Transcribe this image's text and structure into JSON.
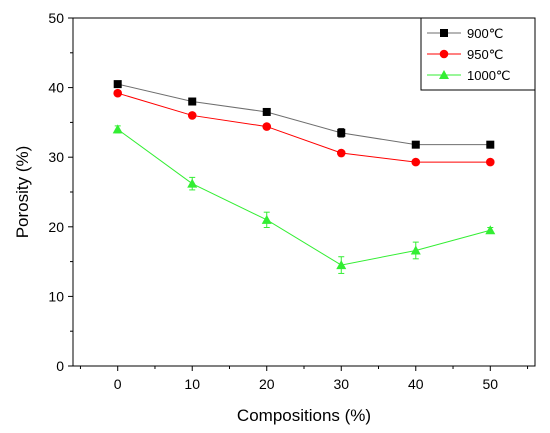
{
  "chart_data": {
    "type": "line",
    "xlabel": "Compositions (%)",
    "ylabel": "Porosity (%)",
    "xlim": [
      -6,
      56
    ],
    "ylim": [
      0,
      50
    ],
    "xticks": [
      0,
      10,
      20,
      30,
      40,
      50
    ],
    "yticks": [
      0,
      10,
      20,
      30,
      40,
      50
    ],
    "grid": false,
    "legend_position": "top-right",
    "x": [
      0,
      10,
      20,
      30,
      40,
      50
    ],
    "series": [
      {
        "name": "900℃",
        "values": [
          40.5,
          38.0,
          36.5,
          33.5,
          31.8,
          31.8
        ],
        "errors": [
          0.3,
          0.2,
          0.2,
          0.6,
          0.2,
          0.2
        ],
        "color": "#000000",
        "line_color": "#6e6e6e",
        "marker": "square"
      },
      {
        "name": "950℃",
        "values": [
          39.2,
          36.0,
          34.4,
          30.6,
          29.3,
          29.3
        ],
        "errors": [
          0.2,
          0.2,
          0.2,
          0.2,
          0.2,
          0.2
        ],
        "color": "#ff0000",
        "line_color": "#ff0000",
        "marker": "circle"
      },
      {
        "name": "1000℃",
        "values": [
          34.0,
          26.2,
          21.0,
          14.5,
          16.6,
          19.5
        ],
        "errors": [
          0.5,
          0.9,
          1.1,
          1.2,
          1.2,
          0.4
        ],
        "color": "#33ee33",
        "line_color": "#33ee33",
        "marker": "triangle"
      }
    ]
  }
}
